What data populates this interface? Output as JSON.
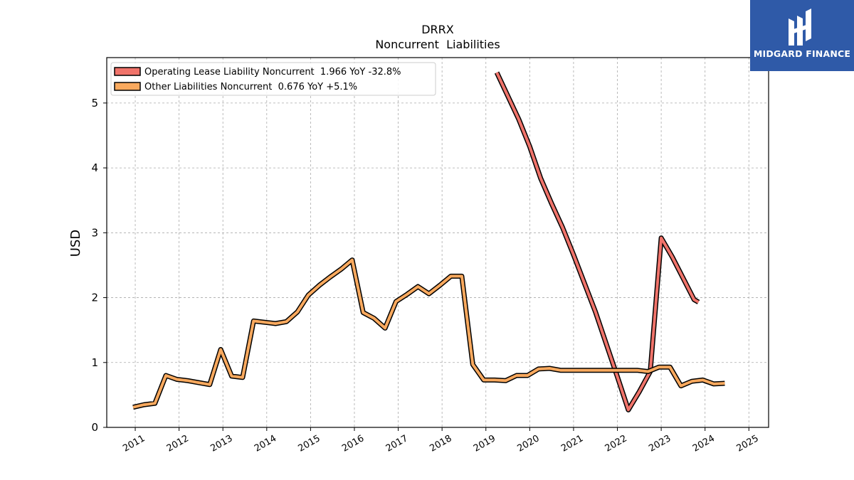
{
  "brand": {
    "name": "MIDGARD FINANCE",
    "color": "#2f5aa8"
  },
  "chart_data": {
    "type": "line",
    "title": "DRRX",
    "subtitle": "Noncurrent  Liabilities",
    "xlabel": "",
    "ylabel": "USD",
    "xlim": [
      2010.35,
      2025.45
    ],
    "ylim": [
      0,
      5.7
    ],
    "x_ticks": [
      "2011",
      "2012",
      "2013",
      "2014",
      "2015",
      "2016",
      "2017",
      "2018",
      "2019",
      "2020",
      "2021",
      "2022",
      "2023",
      "2024",
      "2025"
    ],
    "y_ticks": [
      "0",
      "1",
      "2",
      "3",
      "4",
      "5"
    ],
    "grid": true,
    "legend_position": "top-left",
    "series": [
      {
        "name": "Operating Lease Liability Noncurrent  1.966 YoY -32.8%",
        "color": "#f0736a",
        "points": [
          [
            2019.25,
            5.47
          ],
          [
            2019.75,
            4.75
          ],
          [
            2020.0,
            4.33
          ],
          [
            2020.25,
            3.84
          ],
          [
            2020.5,
            3.45
          ],
          [
            2020.75,
            3.08
          ],
          [
            2021.0,
            2.66
          ],
          [
            2021.25,
            2.22
          ],
          [
            2021.5,
            1.78
          ],
          [
            2021.75,
            1.28
          ],
          [
            2022.0,
            0.78
          ],
          [
            2022.25,
            0.27
          ],
          [
            2022.5,
            0.55
          ],
          [
            2022.75,
            0.86
          ],
          [
            2023.0,
            2.92
          ],
          [
            2023.25,
            2.63
          ],
          [
            2023.5,
            2.3
          ],
          [
            2023.75,
            1.97
          ],
          [
            2023.85,
            1.93
          ]
        ]
      },
      {
        "name": "Other Liabilities Noncurrent  0.676 YoY +5.1%",
        "color": "#f9a95e",
        "points": [
          [
            2010.95,
            0.31
          ],
          [
            2011.2,
            0.35
          ],
          [
            2011.45,
            0.37
          ],
          [
            2011.7,
            0.8
          ],
          [
            2011.95,
            0.74
          ],
          [
            2012.2,
            0.72
          ],
          [
            2012.45,
            0.69
          ],
          [
            2012.7,
            0.66
          ],
          [
            2012.95,
            1.2
          ],
          [
            2013.2,
            0.79
          ],
          [
            2013.45,
            0.77
          ],
          [
            2013.7,
            1.64
          ],
          [
            2013.95,
            1.62
          ],
          [
            2014.2,
            1.6
          ],
          [
            2014.45,
            1.63
          ],
          [
            2014.7,
            1.78
          ],
          [
            2014.95,
            2.04
          ],
          [
            2015.2,
            2.19
          ],
          [
            2015.45,
            2.32
          ],
          [
            2015.7,
            2.44
          ],
          [
            2015.95,
            2.58
          ],
          [
            2016.2,
            1.77
          ],
          [
            2016.45,
            1.68
          ],
          [
            2016.7,
            1.53
          ],
          [
            2016.95,
            1.94
          ],
          [
            2017.2,
            2.05
          ],
          [
            2017.45,
            2.17
          ],
          [
            2017.7,
            2.06
          ],
          [
            2017.95,
            2.19
          ],
          [
            2018.2,
            2.33
          ],
          [
            2018.45,
            2.33
          ],
          [
            2018.7,
            0.97
          ],
          [
            2018.95,
            0.73
          ],
          [
            2019.2,
            0.73
          ],
          [
            2019.45,
            0.72
          ],
          [
            2019.7,
            0.8
          ],
          [
            2019.95,
            0.8
          ],
          [
            2020.2,
            0.9
          ],
          [
            2020.45,
            0.91
          ],
          [
            2020.7,
            0.88
          ],
          [
            2020.95,
            0.88
          ],
          [
            2021.2,
            0.88
          ],
          [
            2021.45,
            0.88
          ],
          [
            2021.7,
            0.88
          ],
          [
            2021.95,
            0.88
          ],
          [
            2022.2,
            0.88
          ],
          [
            2022.45,
            0.88
          ],
          [
            2022.7,
            0.86
          ],
          [
            2022.95,
            0.93
          ],
          [
            2023.2,
            0.93
          ],
          [
            2023.45,
            0.64
          ],
          [
            2023.7,
            0.71
          ],
          [
            2023.95,
            0.73
          ],
          [
            2024.2,
            0.67
          ],
          [
            2024.45,
            0.68
          ]
        ]
      }
    ]
  }
}
